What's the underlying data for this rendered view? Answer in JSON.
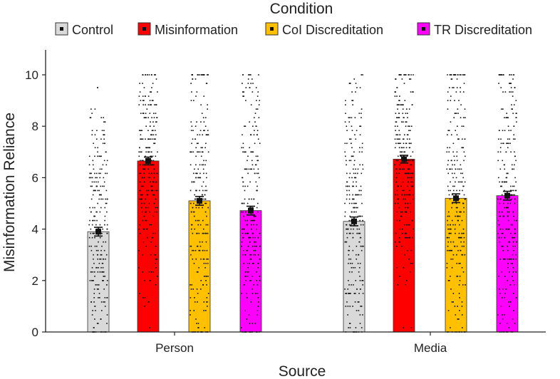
{
  "chart_data": {
    "type": "bar",
    "legend": {
      "title": "Condition",
      "placement": "top",
      "entries": [
        {
          "label": "Control",
          "color": "#d9d9d9"
        },
        {
          "label": "Misinformation",
          "color": "#ff0000"
        },
        {
          "label": "CoI Discreditation",
          "color": "#ffc000"
        },
        {
          "label": "TR Discreditation",
          "color": "#ff00ff"
        }
      ]
    },
    "categories": [
      "Person",
      "Media"
    ],
    "series": [
      {
        "name": "Control",
        "color": "#d9d9d9",
        "values": [
          3.9,
          4.3
        ],
        "error": [
          0.17,
          0.17
        ]
      },
      {
        "name": "Misinformation",
        "color": "#ff0000",
        "values": [
          6.65,
          6.72
        ],
        "error": [
          0.15,
          0.15
        ]
      },
      {
        "name": "CoI Discreditation",
        "color": "#ffc000",
        "values": [
          5.1,
          5.2
        ],
        "error": [
          0.17,
          0.17
        ]
      },
      {
        "name": "TR Discreditation",
        "color": "#ff00ff",
        "values": [
          4.72,
          5.3
        ],
        "error": [
          0.17,
          0.17
        ]
      }
    ],
    "xlabel": "Source",
    "ylabel": "Misinformation Reliance",
    "ylim": [
      0,
      10.5
    ],
    "yticks": [
      0,
      2,
      4,
      6,
      8,
      10
    ],
    "grid": false,
    "individual_points": "jittered raw responses overlaid on each bar"
  }
}
